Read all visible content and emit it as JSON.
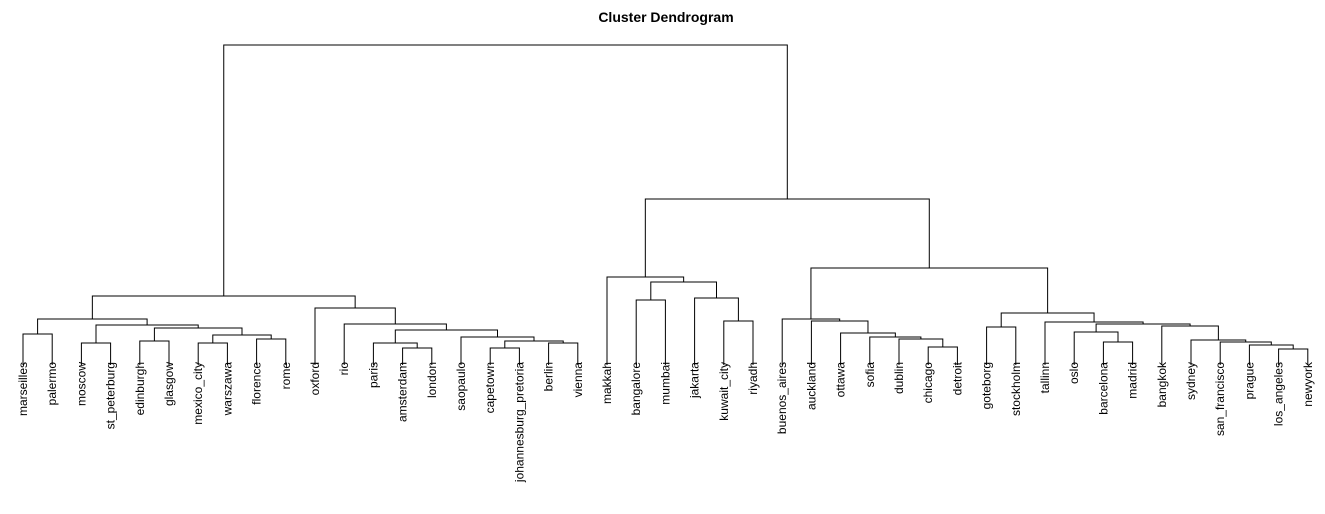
{
  "title": "Cluster Dendrogram",
  "leaves": [
    "marseilles",
    "palermo",
    "moscow",
    "st_peterburg",
    "edinburgh",
    "glasgow",
    "mexico_city",
    "warszawa",
    "florence",
    "rome",
    "oxford",
    "rio",
    "paris",
    "amsterdam",
    "london",
    "saopaulo",
    "capetown",
    "johannesburg_pretoria",
    "berlin",
    "vienna",
    "makkah",
    "bangalore",
    "mumbai",
    "jakarta",
    "kuwait_city",
    "riyadh",
    "buenos_aires",
    "auckland",
    "ottawa",
    "sofia",
    "dublin",
    "chicago",
    "detroit",
    "goteborg",
    "stockholm",
    "tallinn",
    "oslo",
    "barcelona",
    "madrid",
    "bangkok",
    "sydney",
    "san_francisco",
    "prague",
    "los_angeles",
    "newyork"
  ]
}
